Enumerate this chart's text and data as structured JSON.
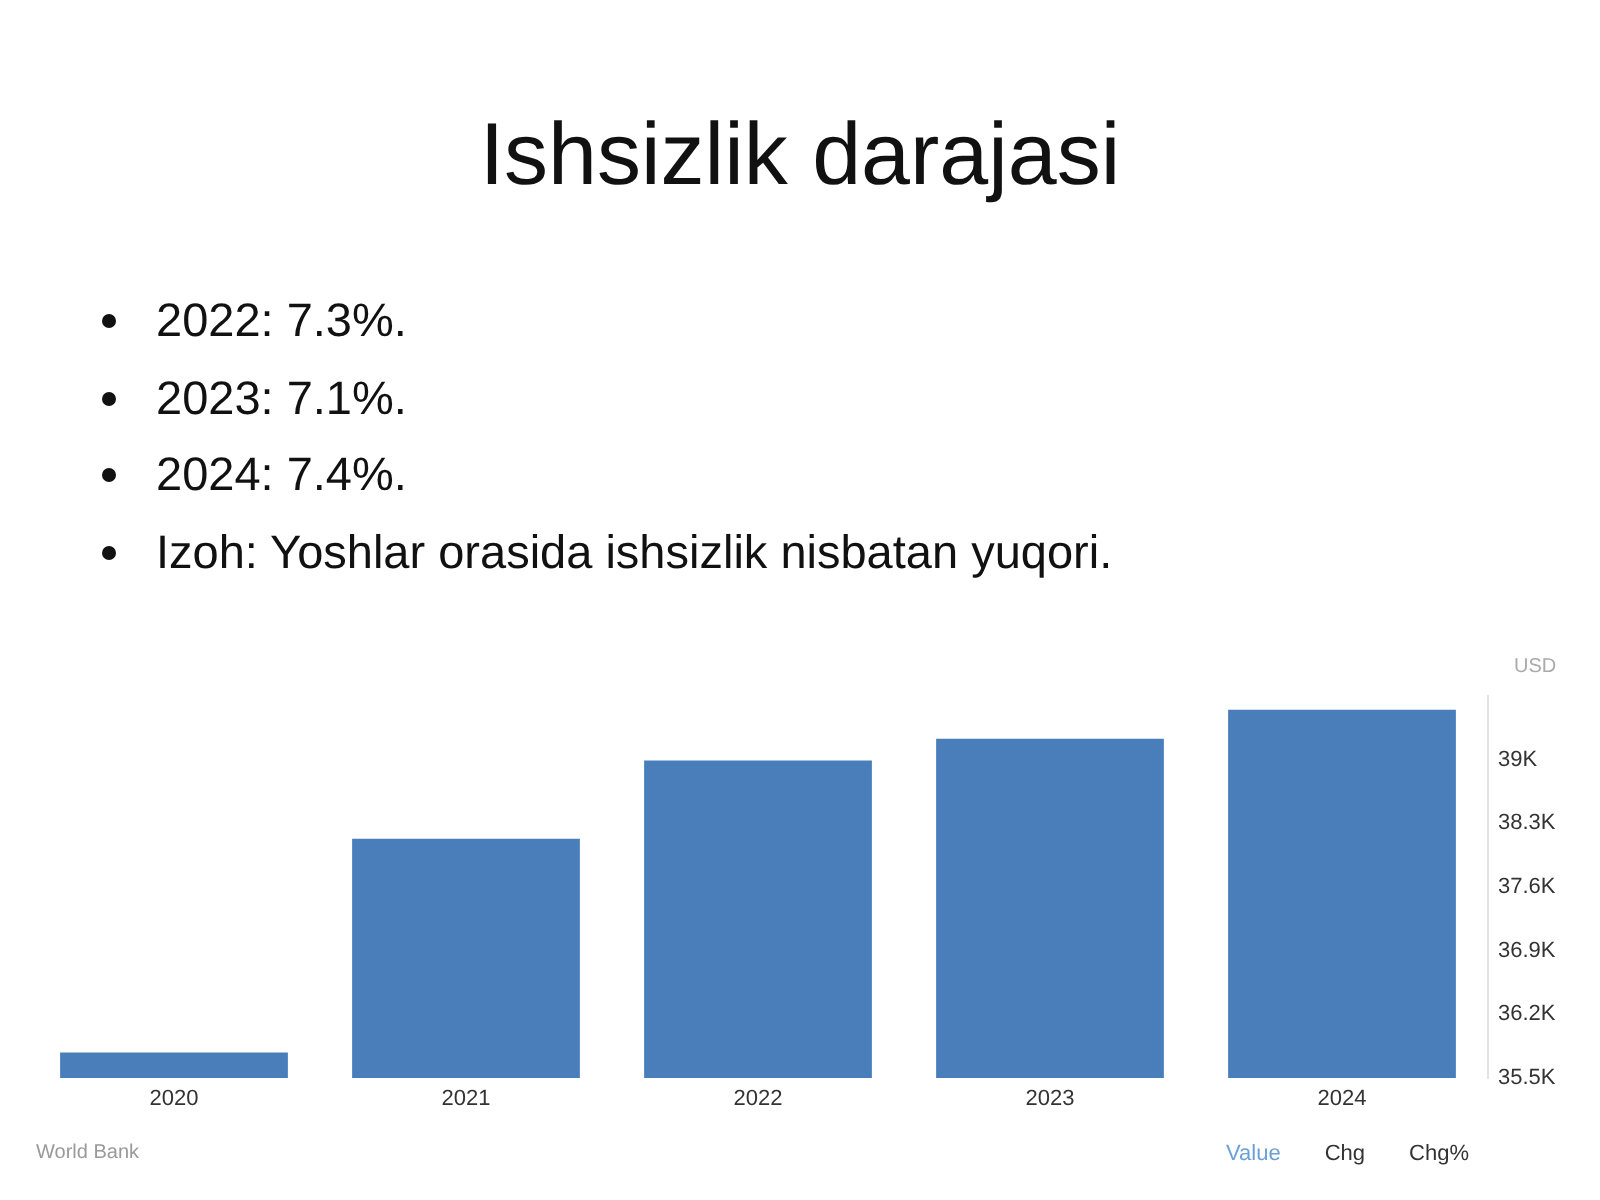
{
  "chart_data": {
    "type": "bar",
    "title": "Ishsizlik darajasi",
    "annotations": [
      "2022: 7.3%.",
      "2023: 7.1%.",
      "2024: 7.4%.",
      "Izoh: Yoshlar orasida ishsizlik nisbatan yuqori.",
      "World Bank",
      "Value",
      "Chg",
      "Chg%"
    ],
    "categories": [
      "2020",
      "2021",
      "2022",
      "2023",
      "2024"
    ],
    "series": [
      {
        "color": "#4a7ebb",
        "values": [
          35780,
          38130,
          38990,
          39230,
          39550
        ],
        "axis": "y2"
      }
    ],
    "y2label": "USD",
    "y2lim": [
      35500,
      39700
    ],
    "y2ticks": [
      {
        "value": 35500,
        "label": "35.5K"
      },
      {
        "value": 36200,
        "label": "36.2K"
      },
      {
        "value": 36900,
        "label": "36.9K"
      },
      {
        "value": 37600,
        "label": "37.6K"
      },
      {
        "value": 38300,
        "label": "38.3K"
      },
      {
        "value": 39000,
        "label": "39K"
      }
    ],
    "grid": false,
    "legend": false
  }
}
